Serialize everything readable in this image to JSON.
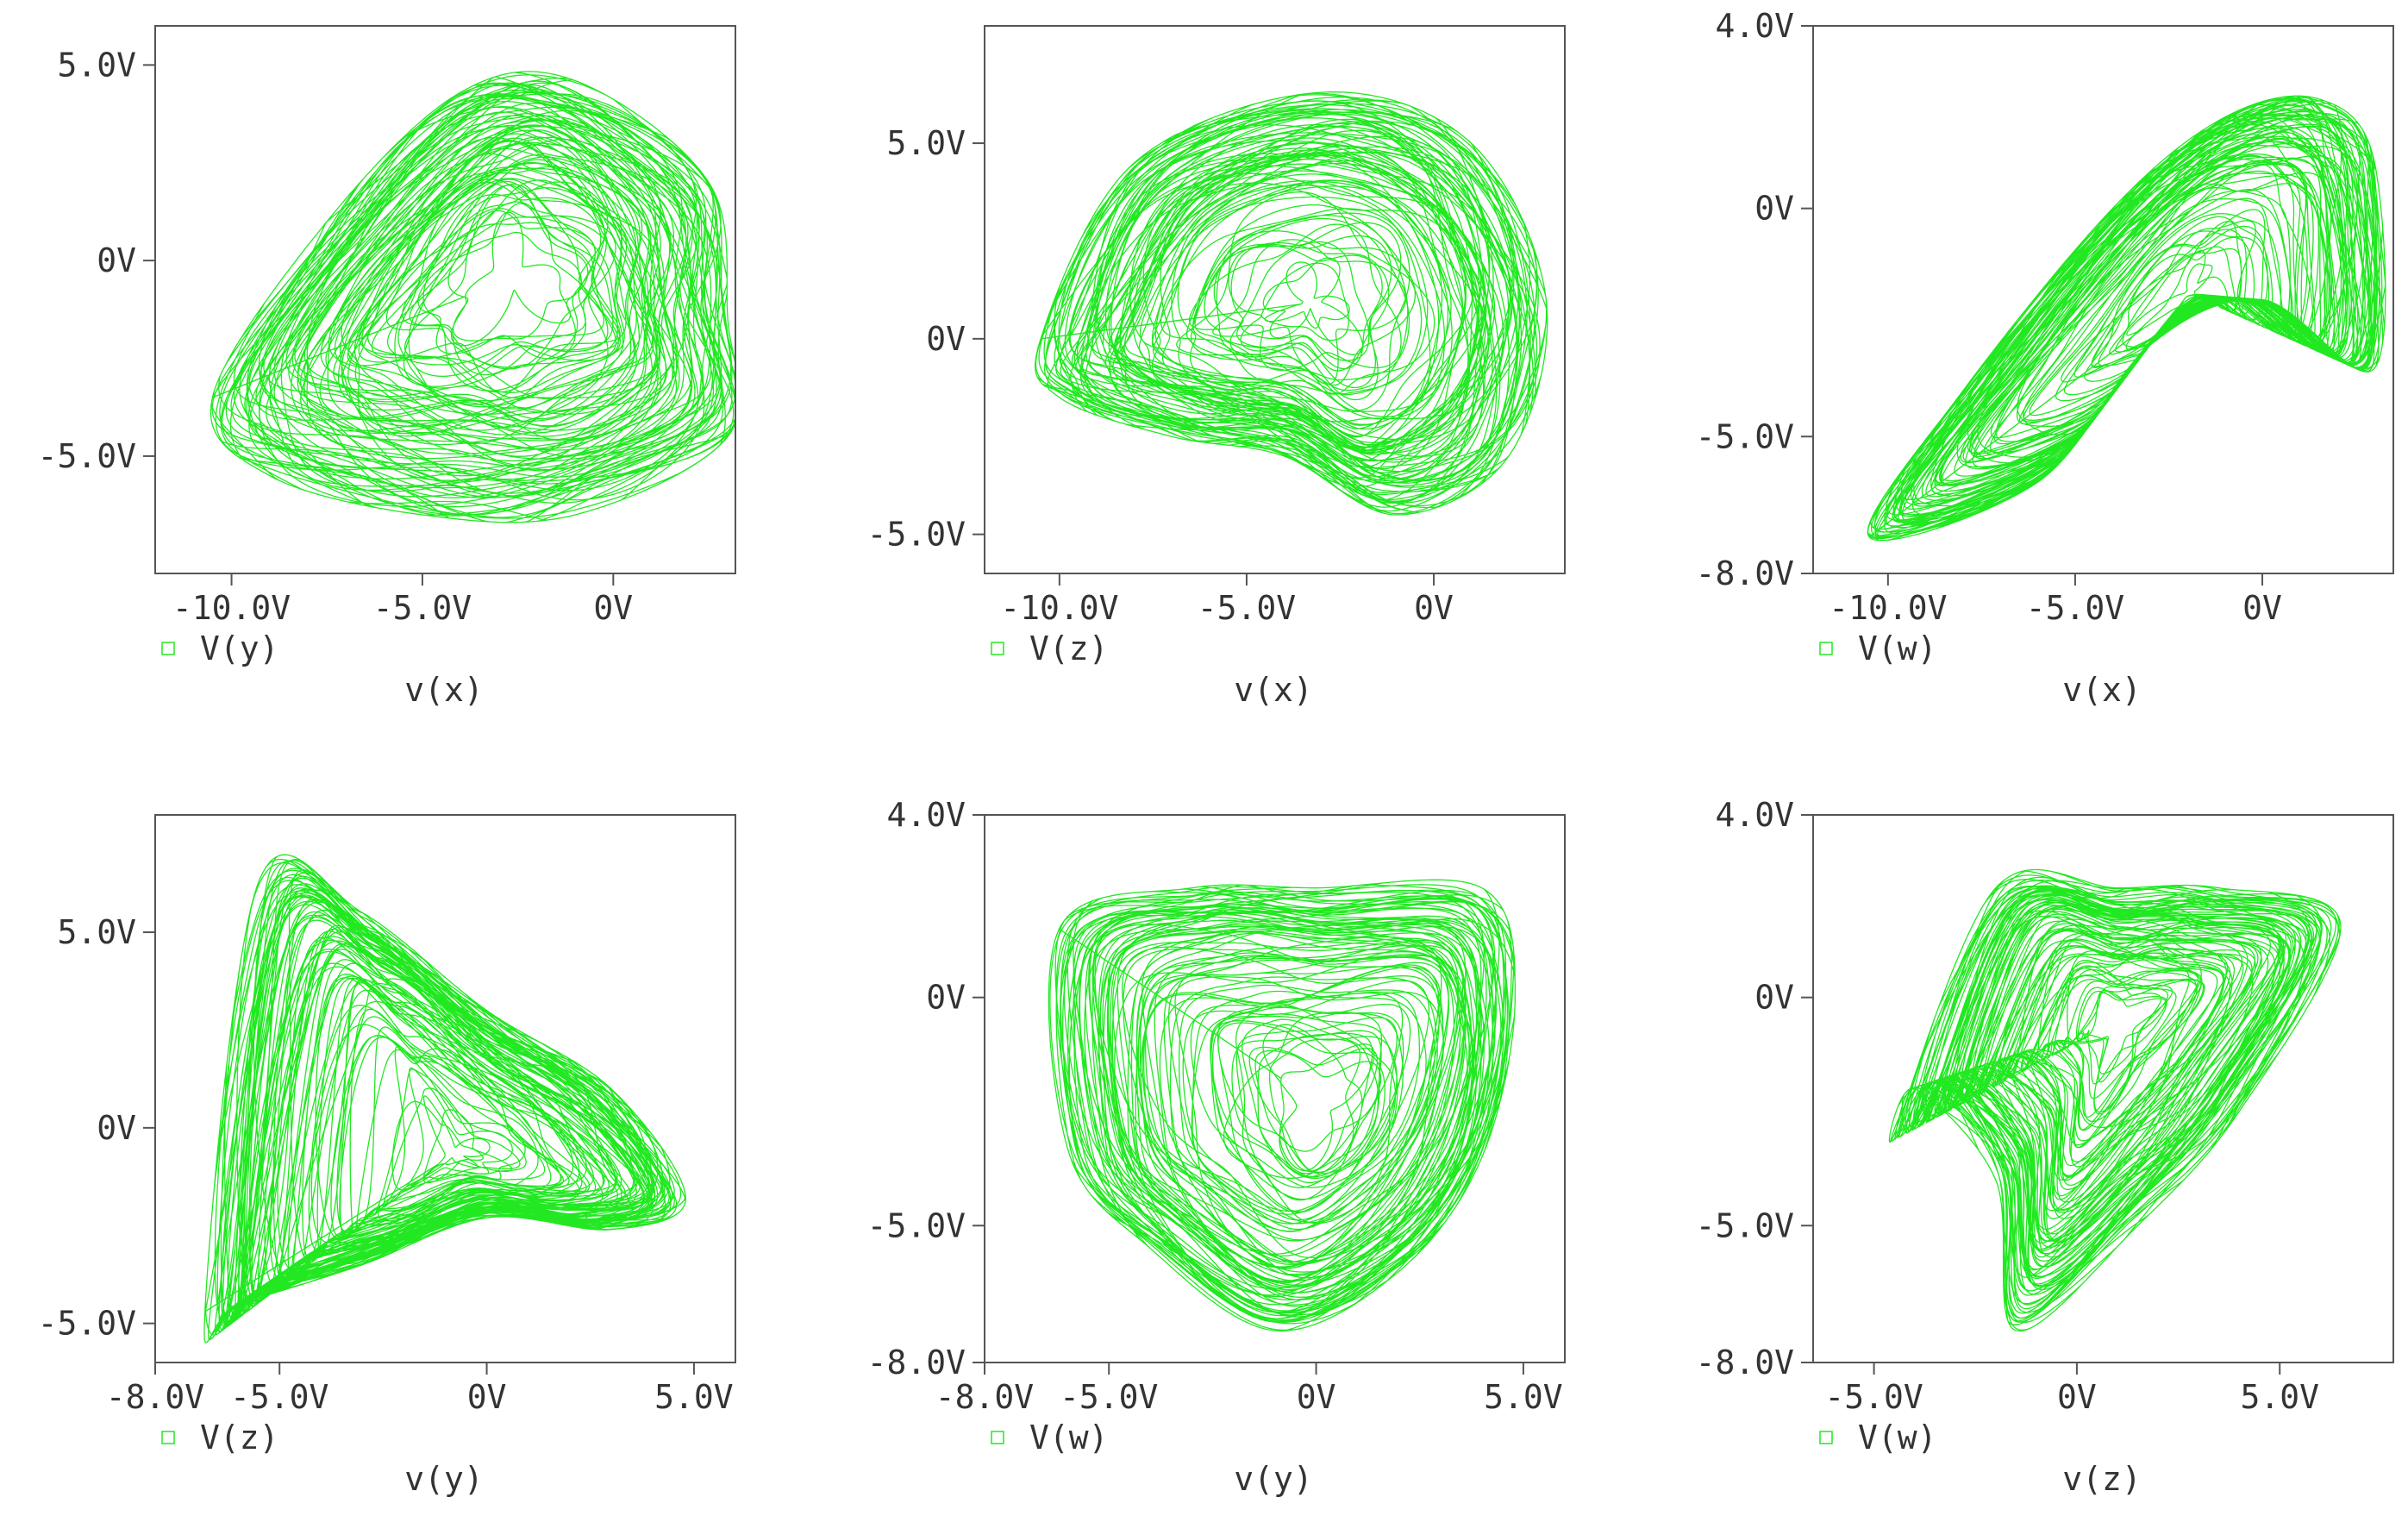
{
  "colors": {
    "trace": "#22e822",
    "frame": "#555555",
    "text": "#333333"
  },
  "chart_data": [
    {
      "type": "scatter",
      "xlabel": "v(x)",
      "series": [
        {
          "name": "V(y)"
        }
      ],
      "xlim": [
        -12.0,
        3.2
      ],
      "ylim": [
        -8.0,
        6.0
      ],
      "x_ticks": [
        {
          "v": -10,
          "label": "-10.0V"
        },
        {
          "v": -5,
          "label": "-5.0V"
        },
        {
          "v": 0,
          "label": "0V"
        }
      ],
      "y_ticks": [
        {
          "v": 5,
          "label": "5.0V"
        },
        {
          "v": 0,
          "label": "0V"
        },
        {
          "v": -5,
          "label": "-5.0V"
        }
      ],
      "attractor": {
        "shape": "limacon",
        "points": [
          [
            -10.5,
            -3.5
          ],
          [
            -7.5,
            1.0
          ],
          [
            -4.0,
            4.3
          ],
          [
            -1.0,
            4.6
          ],
          [
            2.5,
            2.0
          ],
          [
            3.0,
            -1.5
          ],
          [
            3.0,
            -4.5
          ],
          [
            -1.0,
            -6.5
          ],
          [
            -5.0,
            -6.5
          ],
          [
            -9.0,
            -5.5
          ]
        ]
      }
    },
    {
      "type": "scatter",
      "xlabel": "v(x)",
      "series": [
        {
          "name": "V(z)"
        }
      ],
      "xlim": [
        -12.0,
        3.5
      ],
      "ylim": [
        -6.0,
        8.0
      ],
      "x_ticks": [
        {
          "v": -10,
          "label": "-10.0V"
        },
        {
          "v": -5,
          "label": "-5.0V"
        },
        {
          "v": 0,
          "label": "0V"
        }
      ],
      "y_ticks": [
        {
          "v": 5,
          "label": "5.0V"
        },
        {
          "v": 0,
          "label": "0V"
        },
        {
          "v": -5,
          "label": "-5.0V"
        }
      ],
      "attractor": {
        "shape": "limacon",
        "points": [
          [
            -10.5,
            0.0
          ],
          [
            -8.0,
            4.5
          ],
          [
            -3.0,
            6.3
          ],
          [
            1.0,
            5.0
          ],
          [
            3.0,
            1.0
          ],
          [
            2.0,
            -3.0
          ],
          [
            -1.0,
            -4.5
          ],
          [
            -4.0,
            -3.0
          ],
          [
            -7.0,
            -2.5
          ],
          [
            -10.0,
            -1.5
          ]
        ]
      }
    },
    {
      "type": "scatter",
      "xlabel": "v(x)",
      "series": [
        {
          "name": "V(w)"
        }
      ],
      "xlim": [
        -12.0,
        3.5
      ],
      "ylim": [
        -8.0,
        4.0
      ],
      "x_ticks": [
        {
          "v": -10,
          "label": "-10.0V"
        },
        {
          "v": -5,
          "label": "-5.0V"
        },
        {
          "v": 0,
          "label": "0V"
        }
      ],
      "y_ticks": [
        {
          "v": 4,
          "label": "4.0V"
        },
        {
          "v": 0,
          "label": "0V"
        },
        {
          "v": -5,
          "label": "-5.0V"
        },
        {
          "v": -8,
          "label": "-8.0V"
        }
      ],
      "attractor": {
        "shape": "wedge",
        "points": [
          [
            -10.5,
            -7.2
          ],
          [
            -8.0,
            -4.0
          ],
          [
            -4.0,
            0.0
          ],
          [
            -1.0,
            2.0
          ],
          [
            1.5,
            2.4
          ],
          [
            3.0,
            1.0
          ],
          [
            3.0,
            -3.5
          ],
          [
            0.0,
            -2.0
          ],
          [
            -3.0,
            -3.0
          ],
          [
            -6.0,
            -6.0
          ]
        ]
      }
    },
    {
      "type": "scatter",
      "xlabel": "v(y)",
      "series": [
        {
          "name": "V(z)"
        }
      ],
      "xlim": [
        -8.0,
        6.0
      ],
      "ylim": [
        -6.0,
        8.0
      ],
      "x_ticks": [
        {
          "v": -8,
          "label": "-8.0V"
        },
        {
          "v": -5,
          "label": "-5.0V"
        },
        {
          "v": 0,
          "label": "0V"
        },
        {
          "v": 5,
          "label": "5.0V"
        }
      ],
      "y_ticks": [
        {
          "v": 5,
          "label": "5.0V"
        },
        {
          "v": 0,
          "label": "0V"
        },
        {
          "v": -5,
          "label": "-5.0V"
        }
      ],
      "attractor": {
        "shape": "wedge",
        "points": [
          [
            -6.8,
            -4.7
          ],
          [
            -5.5,
            6.3
          ],
          [
            -3.0,
            5.5
          ],
          [
            0.0,
            3.0
          ],
          [
            3.0,
            1.0
          ],
          [
            4.8,
            -1.8
          ],
          [
            3.0,
            -2.6
          ],
          [
            0.0,
            -2.3
          ],
          [
            -3.0,
            -3.5
          ],
          [
            -6.0,
            -4.5
          ]
        ]
      }
    },
    {
      "type": "scatter",
      "xlabel": "v(y)",
      "series": [
        {
          "name": "V(w)"
        }
      ],
      "xlim": [
        -8.0,
        6.0
      ],
      "ylim": [
        -8.0,
        4.0
      ],
      "x_ticks": [
        {
          "v": -8,
          "label": "-8.0V"
        },
        {
          "v": -5,
          "label": "-5.0V"
        },
        {
          "v": 0,
          "label": "0V"
        },
        {
          "v": 5,
          "label": "5.0V"
        }
      ],
      "y_ticks": [
        {
          "v": 4,
          "label": "4.0V"
        },
        {
          "v": 0,
          "label": "0V"
        },
        {
          "v": -5,
          "label": "-5.0V"
        },
        {
          "v": -8,
          "label": "-8.0V"
        }
      ],
      "attractor": {
        "shape": "limacon",
        "points": [
          [
            -6.2,
            1.5
          ],
          [
            -3.0,
            2.4
          ],
          [
            0.0,
            2.4
          ],
          [
            4.0,
            2.4
          ],
          [
            4.8,
            0.0
          ],
          [
            4.0,
            -3.5
          ],
          [
            2.0,
            -6.0
          ],
          [
            -1.0,
            -7.3
          ],
          [
            -4.0,
            -5.5
          ],
          [
            -6.0,
            -3.3
          ]
        ]
      }
    },
    {
      "type": "scatter",
      "xlabel": "v(z)",
      "series": [
        {
          "name": "V(w)"
        }
      ],
      "xlim": [
        -6.5,
        7.8
      ],
      "ylim": [
        -8.0,
        4.0
      ],
      "x_ticks": [
        {
          "v": -5,
          "label": "-5.0V"
        },
        {
          "v": 0,
          "label": "0V"
        },
        {
          "v": 5,
          "label": "5.0V"
        }
      ],
      "y_ticks": [
        {
          "v": 4,
          "label": "4.0V"
        },
        {
          "v": 0,
          "label": "0V"
        },
        {
          "v": -5,
          "label": "-5.0V"
        },
        {
          "v": -8,
          "label": "-8.0V"
        }
      ],
      "attractor": {
        "shape": "wedge",
        "points": [
          [
            -4.5,
            -3.0
          ],
          [
            -2.0,
            2.4
          ],
          [
            1.0,
            2.4
          ],
          [
            3.5,
            2.4
          ],
          [
            6.5,
            1.6
          ],
          [
            4.0,
            -2.5
          ],
          [
            1.5,
            -5.0
          ],
          [
            -1.5,
            -7.3
          ],
          [
            -2.0,
            -4.0
          ],
          [
            -4.0,
            -2.0
          ]
        ]
      }
    }
  ]
}
